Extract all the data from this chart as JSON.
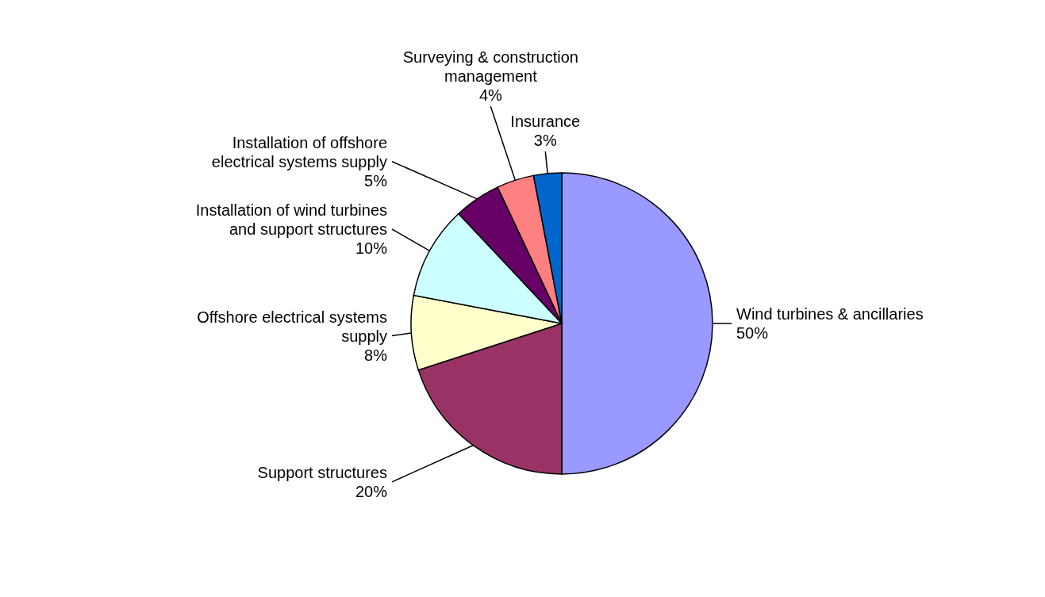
{
  "chart_data": {
    "type": "pie",
    "categories": [
      "Wind turbines & ancillaries",
      "Support structures",
      "Offshore electrical systems supply",
      "Installation of wind turbines and support structures",
      "Installation of offshore electrical systems supply",
      "Surveying & construction management",
      "Insurance"
    ],
    "values": [
      50,
      20,
      8,
      10,
      5,
      4,
      3
    ],
    "colors": [
      "#9999ff",
      "#993366",
      "#ffffcc",
      "#ccffff",
      "#660066",
      "#ff8080",
      "#0066cc"
    ],
    "value_labels": [
      "50%",
      "20%",
      "8%",
      "10%",
      "5%",
      "4%",
      "3%"
    ]
  }
}
